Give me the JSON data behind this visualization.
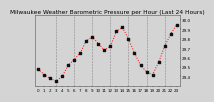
{
  "title": "Milwaukee Weather Barometric Pressure per Hour (Last 24 Hours)",
  "background_color": "#d4d4d4",
  "plot_bg_color": "#d4d4d4",
  "grid_color": "#888888",
  "line_color": "#ff0000",
  "marker_color": "#111111",
  "hours": [
    0,
    1,
    2,
    3,
    4,
    5,
    6,
    7,
    8,
    9,
    10,
    11,
    12,
    13,
    14,
    15,
    16,
    17,
    18,
    19,
    20,
    21,
    22,
    23
  ],
  "pressure": [
    29.48,
    29.42,
    29.38,
    29.35,
    29.4,
    29.52,
    29.58,
    29.65,
    29.78,
    29.82,
    29.75,
    29.68,
    29.72,
    29.88,
    29.92,
    29.8,
    29.65,
    29.52,
    29.45,
    29.42,
    29.55,
    29.72,
    29.85,
    29.95
  ],
  "ylim_min": 29.3,
  "ylim_max": 30.05,
  "yticks": [
    29.4,
    29.5,
    29.6,
    29.7,
    29.8,
    29.9,
    30.0
  ],
  "ytick_labels": [
    "29.4",
    "29.5",
    "29.6",
    "29.7",
    "29.8",
    "29.9",
    "30.0"
  ],
  "title_fontsize": 4.2,
  "tick_fontsize": 3.0,
  "vgrid_positions": [
    3,
    6,
    9,
    12,
    15,
    18,
    21
  ]
}
